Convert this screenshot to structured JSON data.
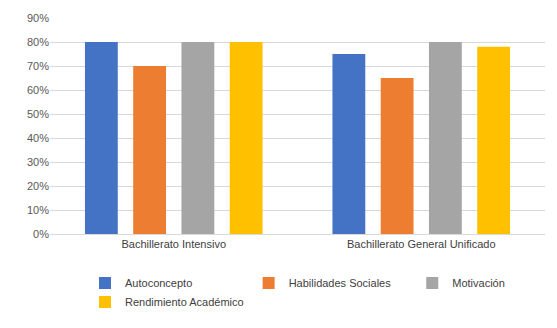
{
  "chart_data": {
    "type": "bar",
    "categories": [
      "Bachillerato Intensivo",
      "Bachillerato General Unificado"
    ],
    "series": [
      {
        "name": "Autoconcepto",
        "color": "#4472c4",
        "values": [
          80,
          75
        ]
      },
      {
        "name": "Habilidades Sociales",
        "color": "#ed7d31",
        "values": [
          70,
          65
        ]
      },
      {
        "name": "Motivación",
        "color": "#a5a5a5",
        "values": [
          80,
          80
        ]
      },
      {
        "name": "Rendimiento Académico",
        "color": "#ffc000",
        "values": [
          80,
          78
        ]
      }
    ],
    "ylim": [
      0,
      90
    ],
    "yticks": [
      {
        "value": 0,
        "label": "0%"
      },
      {
        "value": 10,
        "label": "10%"
      },
      {
        "value": 20,
        "label": "20%"
      },
      {
        "value": 30,
        "label": "30%"
      },
      {
        "value": 40,
        "label": "40%"
      },
      {
        "value": 50,
        "label": "50%"
      },
      {
        "value": 60,
        "label": "60%"
      },
      {
        "value": 70,
        "label": "70%"
      },
      {
        "value": 80,
        "label": "80%"
      },
      {
        "value": 90,
        "label": "90%"
      }
    ],
    "grid": true,
    "legend": "bottom"
  }
}
